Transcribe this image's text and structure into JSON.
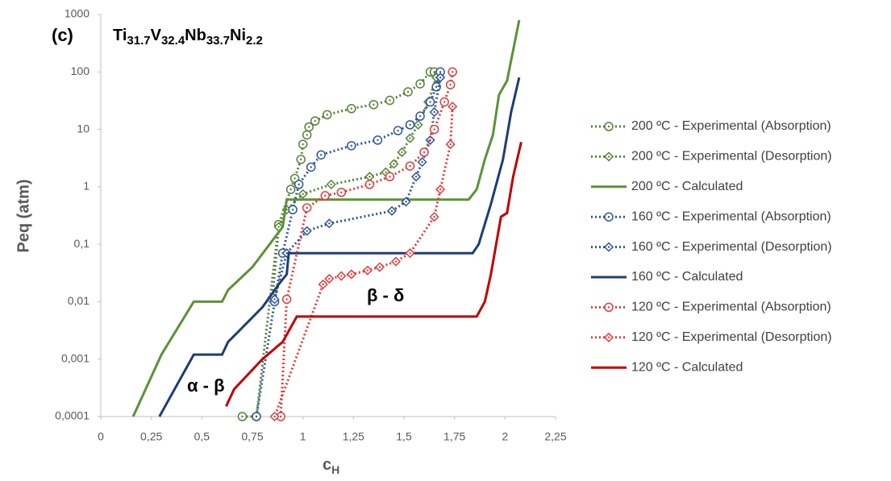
{
  "chart_data": {
    "type": "line",
    "panel_label": "(c)",
    "formula": [
      {
        "element": "Ti",
        "subscript": "31.7"
      },
      {
        "element": "V",
        "subscript": "32.4"
      },
      {
        "element": "Nb",
        "subscript": "33.7"
      },
      {
        "element": "Ni",
        "subscript": "2.2"
      }
    ],
    "ylabel": "Peq (atm)",
    "xlabel": {
      "text": "c",
      "subscript": "H"
    },
    "annotations": [
      "β - δ",
      "α - β"
    ],
    "ylog": true,
    "grid": false,
    "legend": "right",
    "xlim": [
      0,
      2.25
    ],
    "xticks": [
      0,
      {
        "value": 0.25,
        "label": "0,25"
      },
      {
        "value": 0.5,
        "label": "0,5"
      },
      {
        "value": 0.75,
        "label": "0,75"
      },
      1,
      {
        "value": 1.25,
        "label": "1,25"
      },
      {
        "value": 1.5,
        "label": "1,5"
      },
      {
        "value": 1.75,
        "label": "1,75"
      },
      2,
      {
        "value": 2.25,
        "label": "2,25"
      }
    ],
    "ylim": [
      0.0001,
      1000
    ],
    "yticks": [
      {
        "value": 0.0001,
        "label": "0,0001"
      },
      {
        "value": 0.001,
        "label": "0,001"
      },
      {
        "value": 0.01,
        "label": "0,01"
      },
      {
        "value": 0.1,
        "label": "0,1"
      },
      1,
      10,
      100,
      1000
    ],
    "series": [
      {
        "name": "200 ºC - Experimental (Absorption)",
        "color": "#548235",
        "dashed": true,
        "marker": "circle",
        "x": [
          0.7,
          0.77,
          0.88,
          0.94,
          0.96,
          0.99,
          1.0,
          1.02,
          1.03,
          1.06,
          1.12,
          1.24,
          1.35,
          1.43,
          1.52,
          1.58,
          1.63,
          1.65,
          1.67
        ],
        "values": [
          0.0001,
          0.0001,
          0.22,
          0.9,
          1.4,
          3,
          5.5,
          8,
          11,
          14,
          18,
          23,
          27,
          32,
          45,
          62,
          100,
          100,
          90
        ]
      },
      {
        "name": "200 ºC - Experimental (Desorption)",
        "color": "#548235",
        "dashed": true,
        "marker": "diamond",
        "x": [
          1.66,
          1.62,
          1.57,
          1.53,
          1.49,
          1.45,
          1.41,
          1.33,
          1.14,
          1.0,
          0.92,
          0.88,
          0.85
        ],
        "values": [
          80,
          30,
          12,
          7,
          4,
          2.5,
          1.8,
          1.5,
          1.1,
          0.75,
          0.4,
          0.2,
          0.012
        ]
      },
      {
        "name": "200 ºC - Calculated",
        "color": "#5b9237",
        "dashed": false,
        "marker": null,
        "x": [
          0.16,
          0.3,
          0.46,
          0.6,
          0.63,
          0.75,
          0.9,
          0.92,
          1.82,
          1.86,
          1.9,
          1.94,
          1.97,
          2.01,
          2.07
        ],
        "values": [
          0.0001,
          0.0012,
          0.01,
          0.01,
          0.016,
          0.04,
          0.2,
          0.6,
          0.6,
          0.9,
          3,
          8,
          40,
          70,
          800
        ]
      },
      {
        "name": "160 ºC - Experimental (Absorption)",
        "color": "#2f5597",
        "dashed": true,
        "marker": "circle",
        "x": [
          0.77,
          0.86,
          0.9,
          0.95,
          0.98,
          1.04,
          1.09,
          1.24,
          1.37,
          1.47,
          1.53,
          1.58,
          1.63,
          1.66,
          1.68
        ],
        "values": [
          0.0001,
          0.01,
          0.07,
          0.4,
          1.1,
          2.2,
          3.6,
          5.2,
          6.5,
          9.5,
          12,
          17,
          30,
          55,
          100
        ]
      },
      {
        "name": "160 ºC - Experimental (Desorption)",
        "color": "#2f5597",
        "dashed": true,
        "marker": "diamond",
        "x": [
          1.68,
          1.65,
          1.63,
          1.59,
          1.56,
          1.51,
          1.44,
          1.13,
          1.02,
          0.92,
          0.86
        ],
        "values": [
          80,
          20,
          6.5,
          2.7,
          1.5,
          0.55,
          0.38,
          0.23,
          0.17,
          0.07,
          0.011
        ]
      },
      {
        "name": "160 ºC - Calculated",
        "color": "#1f3c7a",
        "dashed": false,
        "marker": null,
        "x": [
          0.29,
          0.46,
          0.6,
          0.63,
          0.68,
          0.8,
          0.88,
          0.92,
          0.93,
          1.84,
          1.87,
          1.93,
          1.99,
          2.03,
          2.07
        ],
        "values": [
          0.0001,
          0.0012,
          0.0012,
          0.002,
          0.003,
          0.008,
          0.02,
          0.03,
          0.07,
          0.07,
          0.1,
          0.5,
          3,
          20,
          80
        ]
      },
      {
        "name": "120 ºC - Experimental (Absorption)",
        "color": "#e03c3c",
        "dashed": true,
        "marker": "circle",
        "x": [
          0.89,
          0.92,
          1.02,
          1.11,
          1.19,
          1.33,
          1.43,
          1.53,
          1.6,
          1.65,
          1.7,
          1.73,
          1.74
        ],
        "values": [
          0.0001,
          0.011,
          0.43,
          0.7,
          0.8,
          1.1,
          1.5,
          2.3,
          4,
          10,
          30,
          60,
          100
        ]
      },
      {
        "name": "120 ºC - Experimental (Desorption)",
        "color": "#e03c3c",
        "dashed": true,
        "marker": "diamond",
        "x": [
          1.74,
          1.73,
          1.68,
          1.65,
          1.53,
          1.46,
          1.38,
          1.32,
          1.24,
          1.19,
          1.13,
          1.1,
          0.86
        ],
        "values": [
          25,
          5.5,
          0.9,
          0.3,
          0.07,
          0.05,
          0.04,
          0.035,
          0.03,
          0.028,
          0.025,
          0.02,
          0.0001
        ]
      },
      {
        "name": "120 ºC - Calculated",
        "color": "#c00000",
        "dashed": false,
        "marker": null,
        "x": [
          0.62,
          0.66,
          0.8,
          0.9,
          0.97,
          1.86,
          1.9,
          1.93,
          1.98,
          2.01,
          2.04,
          2.08
        ],
        "values": [
          0.00015,
          0.0003,
          0.001,
          0.002,
          0.0055,
          0.0055,
          0.01,
          0.03,
          0.3,
          0.35,
          1.5,
          6
        ]
      }
    ]
  }
}
